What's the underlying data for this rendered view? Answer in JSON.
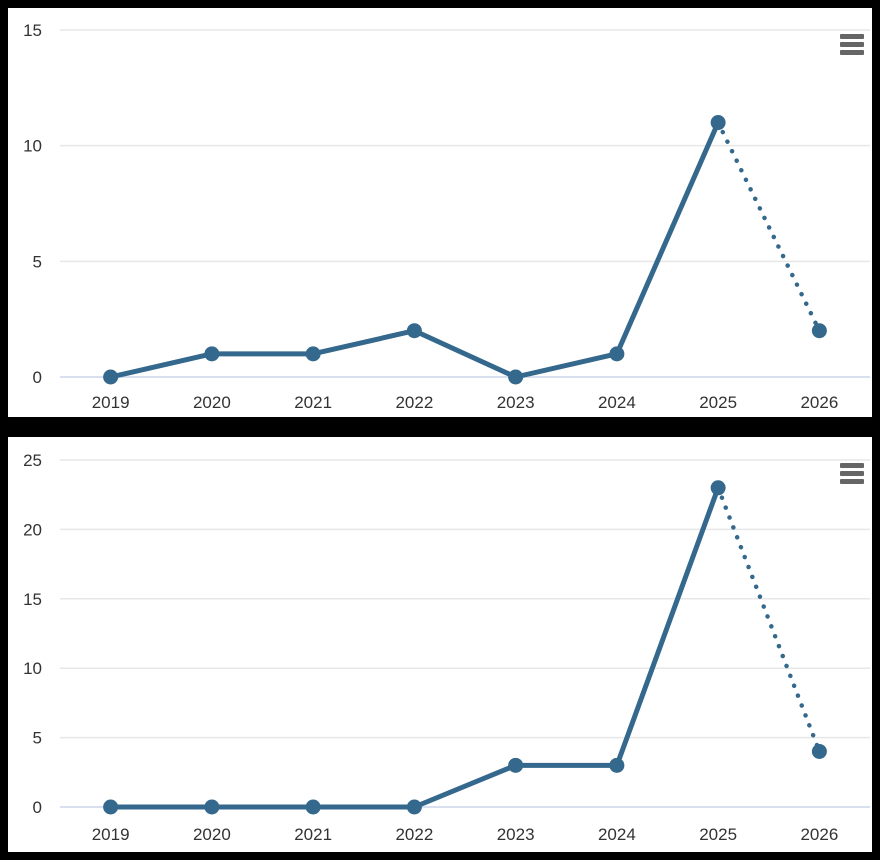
{
  "theme": {
    "page_background": "#000000",
    "panel_background": "#ffffff",
    "accent_color": "#34688c",
    "grid_color": "#e7e7e7",
    "axis_line_color": "#ccd6eb",
    "label_color": "#333333",
    "menu_icon_color": "#666666"
  },
  "menu_button": {
    "icon": "hamburger-icon",
    "purpose": "chart context / export menu"
  },
  "chart_data": [
    {
      "id": "top-chart",
      "type": "line",
      "title": "",
      "categories": [
        "2019",
        "2020",
        "2021",
        "2022",
        "2023",
        "2024",
        "2025",
        "2026"
      ],
      "values": [
        0,
        1,
        1,
        2,
        0,
        1,
        11,
        2
      ],
      "line_segments": {
        "solid_from_category": "2019",
        "solid_to_category": "2025",
        "dotted_from_category": "2025",
        "dotted_to_category": "2026"
      },
      "marker": "circle",
      "y_axis": {
        "min": 0,
        "max": 15,
        "ticks": [
          0,
          5,
          10,
          15
        ]
      },
      "x_axis": {
        "tick_labels": [
          "2019",
          "2020",
          "2021",
          "2022",
          "2023",
          "2024",
          "2025",
          "2026"
        ]
      },
      "grid": true,
      "legend": false
    },
    {
      "id": "bottom-chart",
      "type": "line",
      "title": "",
      "categories": [
        "2019",
        "2020",
        "2021",
        "2022",
        "2023",
        "2024",
        "2025",
        "2026"
      ],
      "values": [
        0,
        0,
        0,
        0,
        3,
        3,
        23,
        4
      ],
      "line_segments": {
        "solid_from_category": "2019",
        "solid_to_category": "2025",
        "dotted_from_category": "2025",
        "dotted_to_category": "2026"
      },
      "marker": "circle",
      "y_axis": {
        "min": 0,
        "max": 25,
        "ticks": [
          0,
          5,
          10,
          15,
          20,
          25
        ]
      },
      "x_axis": {
        "tick_labels": [
          "2019",
          "2020",
          "2021",
          "2022",
          "2023",
          "2024",
          "2025",
          "2026"
        ]
      },
      "grid": true,
      "legend": false
    }
  ]
}
